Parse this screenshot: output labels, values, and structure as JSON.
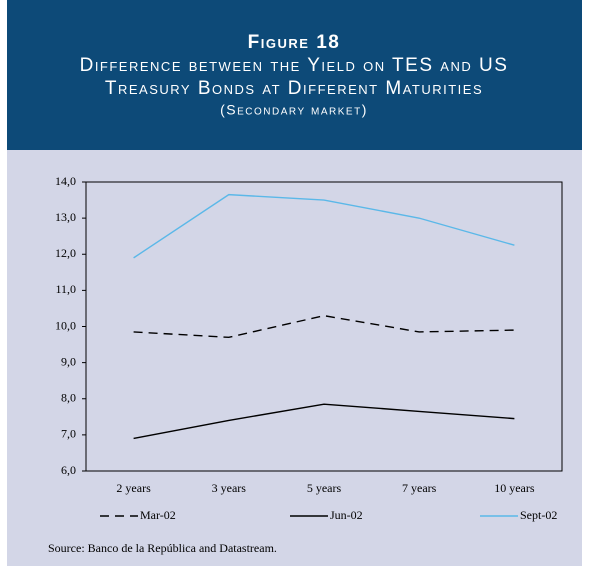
{
  "chart_data": {
    "type": "line",
    "figure_label": "Figure 18",
    "title": "Difference between the Yield on TES and US",
    "title_line2": "Treasury Bonds at Different Maturities",
    "subtitle": "(Secondary market)",
    "categories": [
      "2 years",
      "3 years",
      "5 years",
      "7 years",
      "10 years"
    ],
    "series": [
      {
        "name": "Mar-02",
        "color": "#000000",
        "dash": true,
        "values": [
          9.85,
          9.7,
          10.3,
          9.85,
          9.9
        ]
      },
      {
        "name": "Jun-02",
        "color": "#000000",
        "dash": false,
        "values": [
          6.9,
          7.4,
          7.85,
          7.65,
          7.45
        ]
      },
      {
        "name": "Sept-02",
        "color": "#5bb8e8",
        "dash": false,
        "values": [
          11.9,
          13.65,
          13.5,
          13.0,
          12.25
        ]
      }
    ],
    "ylim": [
      6,
      14
    ],
    "yticks": [
      {
        "value": 6,
        "label": "6,0"
      },
      {
        "value": 7,
        "label": "7,0"
      },
      {
        "value": 8,
        "label": "8,0"
      },
      {
        "value": 9,
        "label": "9,0"
      },
      {
        "value": 10,
        "label": "10,0"
      },
      {
        "value": 11,
        "label": "11,0"
      },
      {
        "value": 12,
        "label": "12,0"
      },
      {
        "value": 13,
        "label": "13,0"
      },
      {
        "value": 14,
        "label": "14,0"
      }
    ],
    "source": "Source: Banco de la República and Datastream."
  }
}
